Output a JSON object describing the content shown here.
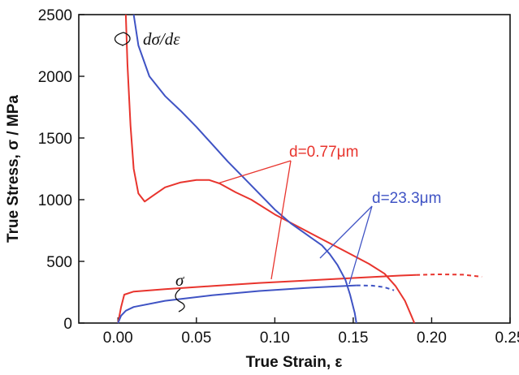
{
  "chart_data": {
    "type": "line",
    "title": "",
    "xlabel": "True Strain, ε",
    "ylabel": "True Stress, σ / MPa",
    "xlim": [
      -0.025,
      0.25
    ],
    "ylim": [
      0,
      2500
    ],
    "x_ticks": [
      0.0,
      0.05,
      0.1,
      0.15,
      0.2,
      0.25
    ],
    "x_tick_labels": [
      "0.00",
      "0.05",
      "0.10",
      "0.15",
      "0.20",
      "0.25"
    ],
    "y_ticks": [
      0,
      500,
      1000,
      1500,
      2000,
      2500
    ],
    "y_tick_labels": [
      "0",
      "500",
      "1000",
      "1500",
      "2000",
      "2500"
    ],
    "grid": false,
    "series": [
      {
        "name": "d=0.77μm",
        "role": "σ",
        "color": "#e8342d",
        "points": [
          [
            0.0,
            0
          ],
          [
            0.002,
            130
          ],
          [
            0.004,
            230
          ],
          [
            0.01,
            255
          ],
          [
            0.03,
            275
          ],
          [
            0.06,
            300
          ],
          [
            0.09,
            325
          ],
          [
            0.12,
            345
          ],
          [
            0.15,
            365
          ],
          [
            0.18,
            385
          ],
          [
            0.19,
            390
          ]
        ],
        "dashed_points": [
          [
            0.19,
            390
          ],
          [
            0.205,
            395
          ],
          [
            0.22,
            392
          ],
          [
            0.232,
            375
          ]
        ]
      },
      {
        "name": "d=23.3μm",
        "role": "σ",
        "color": "#3f53c4",
        "points": [
          [
            0.0,
            0
          ],
          [
            0.002,
            60
          ],
          [
            0.005,
            100
          ],
          [
            0.01,
            130
          ],
          [
            0.03,
            180
          ],
          [
            0.06,
            225
          ],
          [
            0.09,
            260
          ],
          [
            0.12,
            285
          ],
          [
            0.14,
            298
          ],
          [
            0.152,
            305
          ]
        ],
        "dashed_points": [
          [
            0.152,
            305
          ],
          [
            0.162,
            303
          ],
          [
            0.17,
            290
          ],
          [
            0.176,
            265
          ]
        ]
      },
      {
        "name": "d=0.77μm",
        "role": "dσ/dε",
        "color": "#e8342d",
        "points": [
          [
            0.005,
            2500
          ],
          [
            0.006,
            2100
          ],
          [
            0.008,
            1600
          ],
          [
            0.01,
            1250
          ],
          [
            0.013,
            1050
          ],
          [
            0.017,
            985
          ],
          [
            0.022,
            1030
          ],
          [
            0.03,
            1100
          ],
          [
            0.04,
            1140
          ],
          [
            0.05,
            1160
          ],
          [
            0.058,
            1160
          ],
          [
            0.065,
            1130
          ],
          [
            0.075,
            1060
          ],
          [
            0.085,
            1000
          ],
          [
            0.1,
            880
          ],
          [
            0.115,
            780
          ],
          [
            0.13,
            680
          ],
          [
            0.145,
            580
          ],
          [
            0.16,
            480
          ],
          [
            0.17,
            400
          ],
          [
            0.177,
            300
          ],
          [
            0.183,
            180
          ],
          [
            0.187,
            60
          ],
          [
            0.189,
            0
          ]
        ]
      },
      {
        "name": "d=23.3μm",
        "role": "dσ/dε",
        "color": "#3f53c4",
        "points": [
          [
            0.01,
            2500
          ],
          [
            0.013,
            2250
          ],
          [
            0.02,
            2000
          ],
          [
            0.03,
            1840
          ],
          [
            0.04,
            1720
          ],
          [
            0.05,
            1590
          ],
          [
            0.06,
            1450
          ],
          [
            0.07,
            1310
          ],
          [
            0.08,
            1180
          ],
          [
            0.09,
            1050
          ],
          [
            0.1,
            920
          ],
          [
            0.11,
            810
          ],
          [
            0.12,
            720
          ],
          [
            0.13,
            630
          ],
          [
            0.135,
            560
          ],
          [
            0.14,
            470
          ],
          [
            0.145,
            350
          ],
          [
            0.148,
            230
          ],
          [
            0.151,
            80
          ],
          [
            0.152,
            0
          ]
        ]
      }
    ],
    "annotations": {
      "dsde": "dσ/dε",
      "sigma": "σ",
      "d_red": "d=0.77μm",
      "d_blue": "d=23.3μm"
    }
  }
}
